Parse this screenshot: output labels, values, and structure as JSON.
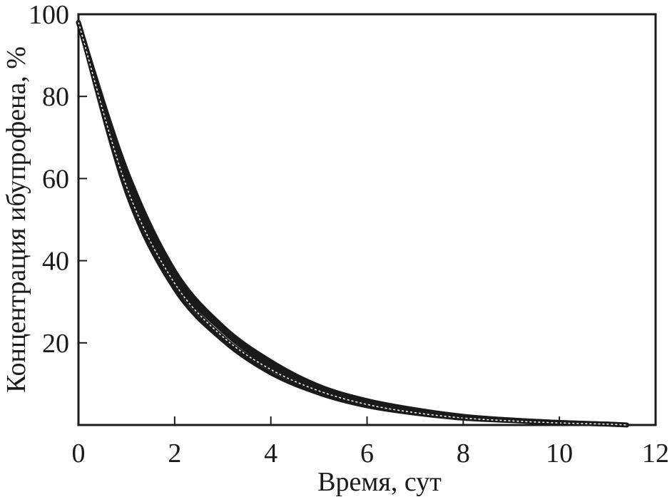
{
  "chart_data": {
    "type": "line",
    "xlabel": "Время, сут",
    "ylabel": "Концентрация ибупрофена, %",
    "xlim": [
      0,
      12
    ],
    "ylim": [
      0,
      100
    ],
    "x_ticks": [
      0,
      2,
      4,
      6,
      8,
      10,
      12
    ],
    "y_ticks": [
      20,
      40,
      60,
      80,
      100
    ],
    "grid": false,
    "legend": "none",
    "series": [
      {
        "x": [
          0,
          1,
          2,
          3,
          4,
          5,
          6,
          7,
          8,
          9,
          10,
          11,
          11.4
        ],
        "y": [
          98,
          60,
          36,
          23,
          14.5,
          9,
          5.5,
          3.5,
          2,
          1.2,
          0.6,
          0.2,
          0
        ]
      },
      {
        "x": [
          0,
          1,
          2,
          3,
          4,
          5,
          6,
          7,
          8,
          9,
          10,
          11,
          11.4
        ],
        "y": [
          98,
          62,
          37.5,
          24,
          15.5,
          9.5,
          6,
          3.8,
          2.2,
          1.3,
          0.7,
          0.3,
          0
        ]
      },
      {
        "x": [
          0,
          1,
          2,
          3,
          4,
          5,
          6,
          7,
          8,
          9,
          10,
          11,
          11.4
        ],
        "y": [
          98,
          58,
          34.5,
          21.5,
          13.5,
          8.3,
          5,
          3,
          1.7,
          1,
          0.5,
          0.2,
          0
        ]
      },
      {
        "x": [
          0,
          1,
          2,
          3,
          4,
          5,
          6,
          7,
          8,
          9,
          10,
          11,
          11.4
        ],
        "y": [
          98,
          56.5,
          33,
          20.5,
          12.5,
          7.6,
          4.5,
          2.7,
          1.5,
          0.9,
          0.4,
          0.1,
          0
        ]
      }
    ],
    "color": "#1a1a1a"
  }
}
